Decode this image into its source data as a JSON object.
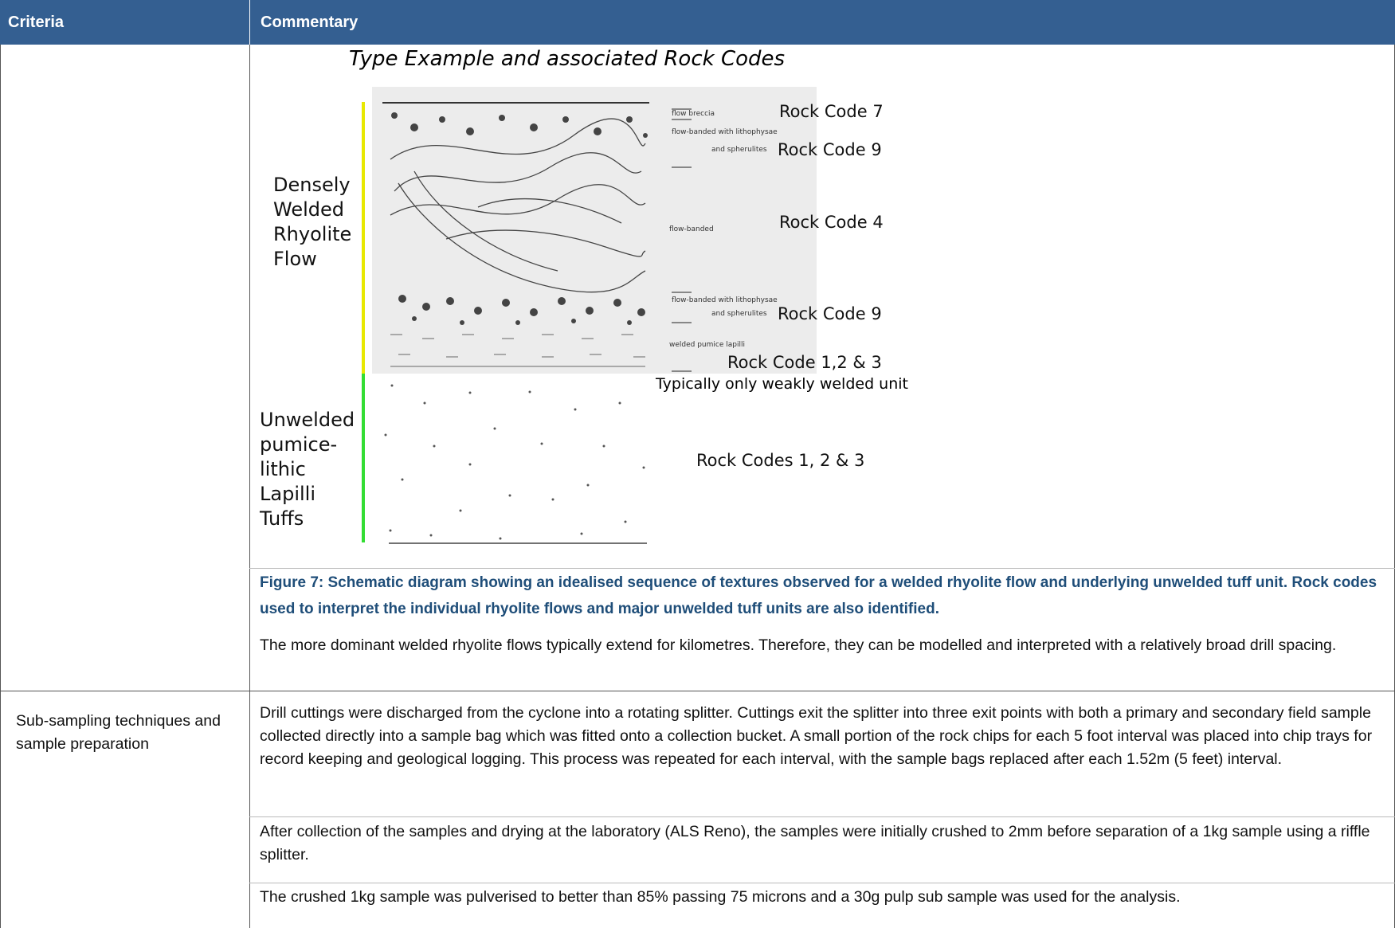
{
  "header": {
    "criteria": "Criteria",
    "commentary": "Commentary"
  },
  "rows": [
    {
      "figure": {
        "title": "Type Example and associated Rock Codes",
        "upper_unit": [
          "Densely",
          "Welded",
          "Rhyolite",
          "Flow"
        ],
        "lower_unit": [
          "Unwelded",
          "pumice-",
          "lithic",
          "Lapilli",
          "Tuffs"
        ],
        "annotations": [
          "flow breccia",
          "flow-banded with lithophysae",
          "and spherulites",
          "flow-banded",
          "flow-banded with lithophysae",
          "and spherulites",
          "welded pumice lapilli"
        ],
        "rock_codes": [
          "Rock Code 7",
          "Rock Code 9",
          "Rock Code 4",
          "Rock Code 9",
          "Rock Code 1,2 & 3",
          "Typically only weakly welded unit",
          "Rock Codes 1, 2 & 3"
        ]
      },
      "caption": "Figure 7: Schematic diagram showing an idealised sequence of textures observed for a welded rhyolite flow and underlying unwelded tuff unit. Rock codes used to interpret the individual rhyolite flows and major unwelded tuff units are also identified.",
      "paragraphs": [
        "The more dominant welded rhyolite flows typically extend for kilometres. Therefore, they can be modelled and interpreted with a relatively broad drill spacing."
      ]
    },
    {
      "criteria": "Sub-sampling techniques and sample preparation",
      "paragraphs": [
        "Drill cuttings were discharged from the cyclone into a rotating splitter. Cuttings exit the splitter into three exit points with both a primary and secondary field sample collected directly into a sample bag which was fitted onto a collection bucket. A small portion of the rock chips for each 5 foot interval was placed into chip trays for record keeping and geological logging. This process was repeated for each interval, with the sample bags replaced after each 1.52m (5 feet) interval.",
        "After collection of the samples and drying at the laboratory (ALS Reno), the samples were initially crushed to 2mm before separation of a 1kg sample using a riffle splitter.",
        "The crushed 1kg sample was pulverised to better than 85% passing 75 microns and a 30g pulp sub sample was used for the analysis."
      ]
    }
  ]
}
